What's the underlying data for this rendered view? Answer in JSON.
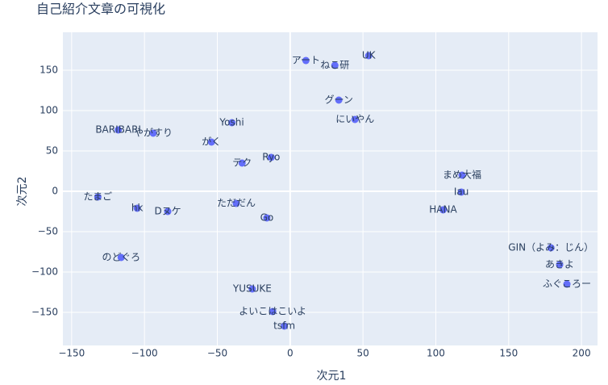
{
  "chart_data": {
    "type": "scatter",
    "title": "自己紹介文章の可視化",
    "x_label": "次元1",
    "y_label": "次元2",
    "color": "#636efa",
    "grid": true,
    "xlim": [
      -156,
      211
    ],
    "ylim": [
      -191,
      197
    ],
    "xticks": [
      {
        "value": -150,
        "label": "−150"
      },
      {
        "value": -100,
        "label": "−100"
      },
      {
        "value": -50,
        "label": "−50"
      },
      0,
      50,
      100,
      150,
      200
    ],
    "yticks": [
      {
        "value": -150,
        "label": "−150"
      },
      {
        "value": -100,
        "label": "−100"
      },
      {
        "value": -50,
        "label": "−50"
      },
      0,
      50,
      100,
      150
    ],
    "labels": [
      "アート",
      "ねこ研",
      "UK",
      "グーン",
      "にいやん",
      "Yoshi",
      "BARIBARI",
      "やがすり",
      "がく",
      "Ryo",
      "テク",
      "まめ大福",
      "Iau",
      "たまご",
      "ただだん",
      "hk",
      "Dヌケ",
      "HANA",
      "Go",
      "のどぐろ",
      "GIN（よみ：じん）",
      "あきよ",
      "ふぐころー",
      "YUSUKE",
      "よいこはこいよ",
      "tsfm"
    ],
    "x": [
      10.8,
      30.7,
      53.9,
      33.4,
      44.5,
      -40,
      -118,
      -94,
      -54,
      -13,
      -33,
      118,
      117.5,
      -132,
      -37,
      -105,
      -84,
      105,
      -16,
      -116,
      179,
      185,
      190,
      -26,
      -12,
      -4
    ],
    "y": [
      162,
      156,
      168,
      113,
      89,
      85,
      76,
      72,
      61,
      42,
      35,
      20,
      -1,
      -7,
      -15,
      -21,
      -25,
      -23,
      -33,
      -82,
      -70,
      -91,
      -115,
      -121,
      -149,
      -167
    ]
  }
}
